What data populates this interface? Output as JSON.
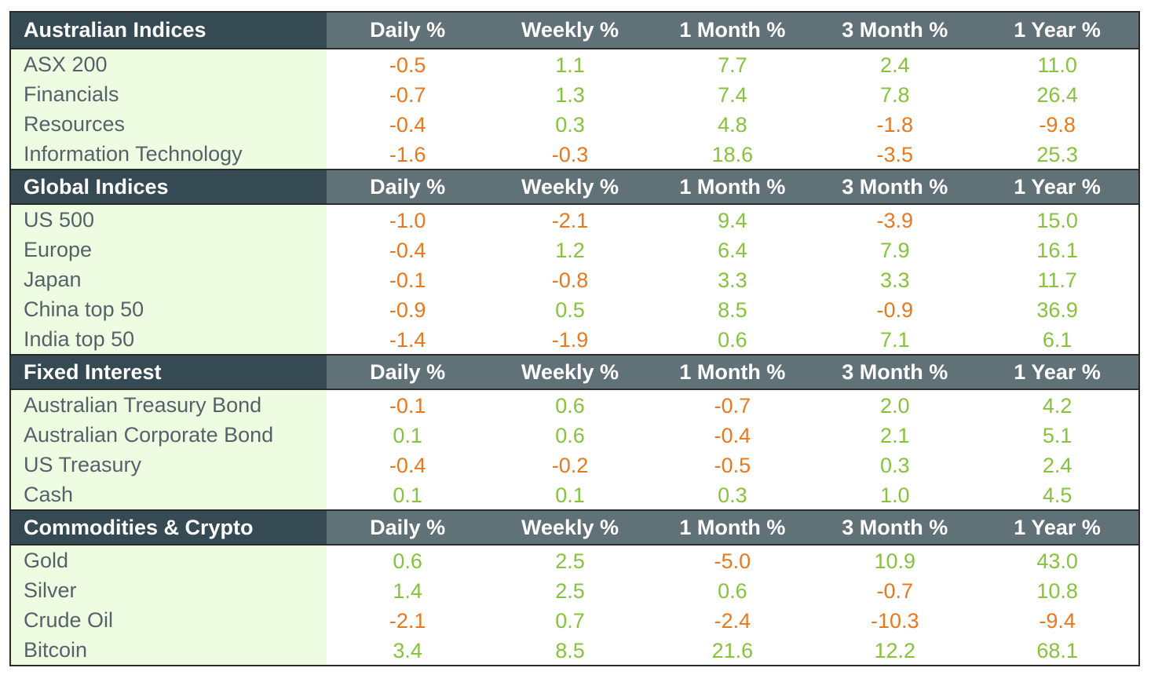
{
  "columns": [
    "Daily %",
    "Weekly %",
    "1 Month %",
    "3 Month %",
    "1 Year %"
  ],
  "colors": {
    "positive": "#86c23c",
    "negative": "#e8781f",
    "header_dark": "#354a52",
    "header_mid": "#617178",
    "label_bg": "#eefde2"
  },
  "sections": [
    {
      "title": "Australian Indices",
      "rows": [
        {
          "label": "ASX 200",
          "values": [
            "-0.5",
            "1.1",
            "7.7",
            "2.4",
            "11.0"
          ]
        },
        {
          "label": "Financials",
          "values": [
            "-0.7",
            "1.3",
            "7.4",
            "7.8",
            "26.4"
          ]
        },
        {
          "label": "Resources",
          "values": [
            "-0.4",
            "0.3",
            "4.8",
            "-1.8",
            "-9.8"
          ]
        },
        {
          "label": "Information Technology",
          "values": [
            "-1.6",
            "-0.3",
            "18.6",
            "-3.5",
            "25.3"
          ]
        }
      ]
    },
    {
      "title": "Global Indices",
      "rows": [
        {
          "label": "US 500",
          "values": [
            "-1.0",
            "-2.1",
            "9.4",
            "-3.9",
            "15.0"
          ]
        },
        {
          "label": "Europe",
          "values": [
            "-0.4",
            "1.2",
            "6.4",
            "7.9",
            "16.1"
          ]
        },
        {
          "label": "Japan",
          "values": [
            "-0.1",
            "-0.8",
            "3.3",
            "3.3",
            "11.7"
          ]
        },
        {
          "label": "China top 50",
          "values": [
            "-0.9",
            "0.5",
            "8.5",
            "-0.9",
            "36.9"
          ]
        },
        {
          "label": "India top 50",
          "values": [
            "-1.4",
            "-1.9",
            "0.6",
            "7.1",
            "6.1"
          ]
        }
      ]
    },
    {
      "title": "Fixed Interest",
      "rows": [
        {
          "label": "Australian Treasury Bond",
          "values": [
            "-0.1",
            "0.6",
            "-0.7",
            "2.0",
            "4.2"
          ]
        },
        {
          "label": "Australian Corporate Bond",
          "values": [
            "0.1",
            "0.6",
            "-0.4",
            "2.1",
            "5.1"
          ]
        },
        {
          "label": "US Treasury",
          "values": [
            "-0.4",
            "-0.2",
            "-0.5",
            "0.3",
            "2.4"
          ]
        },
        {
          "label": "Cash",
          "values": [
            "0.1",
            "0.1",
            "0.3",
            "1.0",
            "4.5"
          ]
        }
      ]
    },
    {
      "title": "Commodities & Crypto",
      "rows": [
        {
          "label": "Gold",
          "values": [
            "0.6",
            "2.5",
            "-5.0",
            "10.9",
            "43.0"
          ]
        },
        {
          "label": "Silver",
          "values": [
            "1.4",
            "2.5",
            "0.6",
            "-0.7",
            "10.8"
          ]
        },
        {
          "label": "Crude Oil",
          "values": [
            "-2.1",
            "0.7",
            "-2.4",
            "-10.3",
            "-9.4"
          ]
        },
        {
          "label": "Bitcoin",
          "values": [
            "3.4",
            "8.5",
            "21.6",
            "12.2",
            "68.1"
          ]
        }
      ]
    }
  ]
}
